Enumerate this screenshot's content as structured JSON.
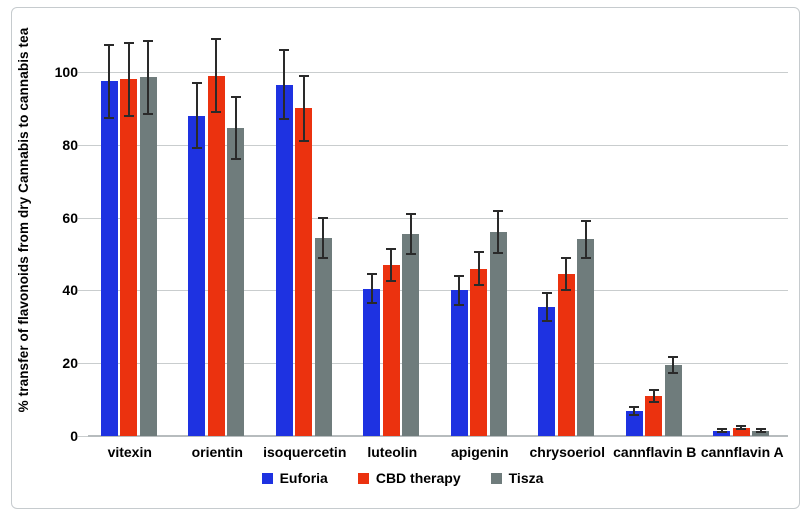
{
  "figure": {
    "background": "#ffffff",
    "border_color": "#c6cbce",
    "gridline_color": "#c9cdce",
    "error_bar_color": "#2a2a2a",
    "text_color": "#000000"
  },
  "chart_data": {
    "type": "bar",
    "title": "",
    "xlabel": "",
    "ylabel": "% transfer of flavonoids from dry Cannabis to cannabis tea",
    "categories": [
      "vitexin",
      "orientin",
      "isoquercetin",
      "luteolin",
      "apigenin",
      "chrysoeriol",
      "cannflavin B",
      "cannflavin A"
    ],
    "series": [
      {
        "name": "Euforia",
        "color": "#1e32e1",
        "values": [
          97.5,
          88,
          96.5,
          40.5,
          40,
          35.5,
          6.8,
          1.5
        ],
        "errors": [
          10,
          9,
          9.5,
          4,
          4,
          3.8,
          1.1,
          0.3
        ]
      },
      {
        "name": "CBD therapy",
        "color": "#eb320f",
        "values": [
          98,
          99,
          90,
          47,
          46,
          44.5,
          11,
          2.3
        ],
        "errors": [
          10,
          10,
          9,
          4.5,
          4.5,
          4.4,
          1.6,
          0.4
        ]
      },
      {
        "name": "Tisza",
        "color": "#6f7c7c",
        "values": [
          98.5,
          84.5,
          54.5,
          55.5,
          56,
          54,
          19.5,
          1.5
        ],
        "errors": [
          10,
          8.5,
          5.5,
          5.5,
          5.8,
          5,
          2.3,
          0.4
        ]
      }
    ],
    "yticks": [
      0,
      20,
      40,
      60,
      80,
      100
    ],
    "ylim": [
      0,
      110
    ],
    "grid": true,
    "legend_position": "bottom",
    "error_bars": true
  }
}
